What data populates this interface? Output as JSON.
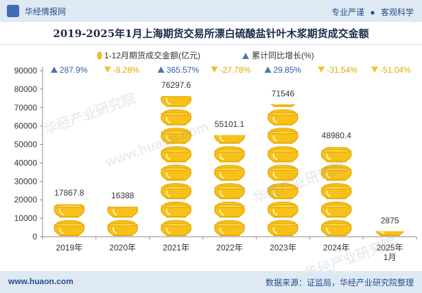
{
  "header": {
    "brand": "华经情报网",
    "tag_left": "专业严谨",
    "tag_sep": "●",
    "tag_right": "客观科学"
  },
  "title": "2019-2025年1月上海期货交易所漂白硫酸盐针叶木浆期货成交金额",
  "footer": {
    "url": "www.huaon.com",
    "source": "数据来源：证监局，华经产业研究院整理"
  },
  "watermarks": [
    "华经产业研究院",
    "www.huaon.com",
    "华经产业研究院",
    "华经产业研究院"
  ],
  "colors": {
    "coin_fill": "#f7c11a",
    "coin_stroke": "#e6a400",
    "up_marker": "#4a73b8",
    "down_marker": "#f2c12e",
    "up_text": "#2e5aa8",
    "down_text": "#e0a800",
    "axis": "#888888"
  },
  "chart_data": {
    "type": "bar",
    "categories": [
      "2019年",
      "2020年",
      "2021年",
      "2022年",
      "2023年",
      "2024年",
      "2025年\n1月"
    ],
    "series": [
      {
        "name": "1-12月期货成交金额(亿元)",
        "values": [
          17867.8,
          16388,
          76297.6,
          55101.1,
          71546,
          48980.4,
          2875
        ],
        "labels": [
          "17867.8",
          "16388",
          "76297.6",
          "55101.1",
          "71546",
          "48980.4",
          "2875"
        ]
      },
      {
        "name": "累计同比增长(%)",
        "values": [
          287.9,
          -8.28,
          365.57,
          -27.78,
          29.85,
          -31.54,
          -51.04
        ],
        "labels": [
          "287.9%",
          "-8.28%",
          "365.57%",
          "-27.78%",
          "29.85%",
          "-31.54%",
          "-51.04%"
        ]
      }
    ],
    "ylim": [
      0,
      90000
    ],
    "yticks": [
      "0",
      "10000",
      "20000",
      "30000",
      "40000",
      "50000",
      "60000",
      "70000",
      "80000",
      "90000"
    ],
    "legend_position": "top",
    "grid": false
  }
}
